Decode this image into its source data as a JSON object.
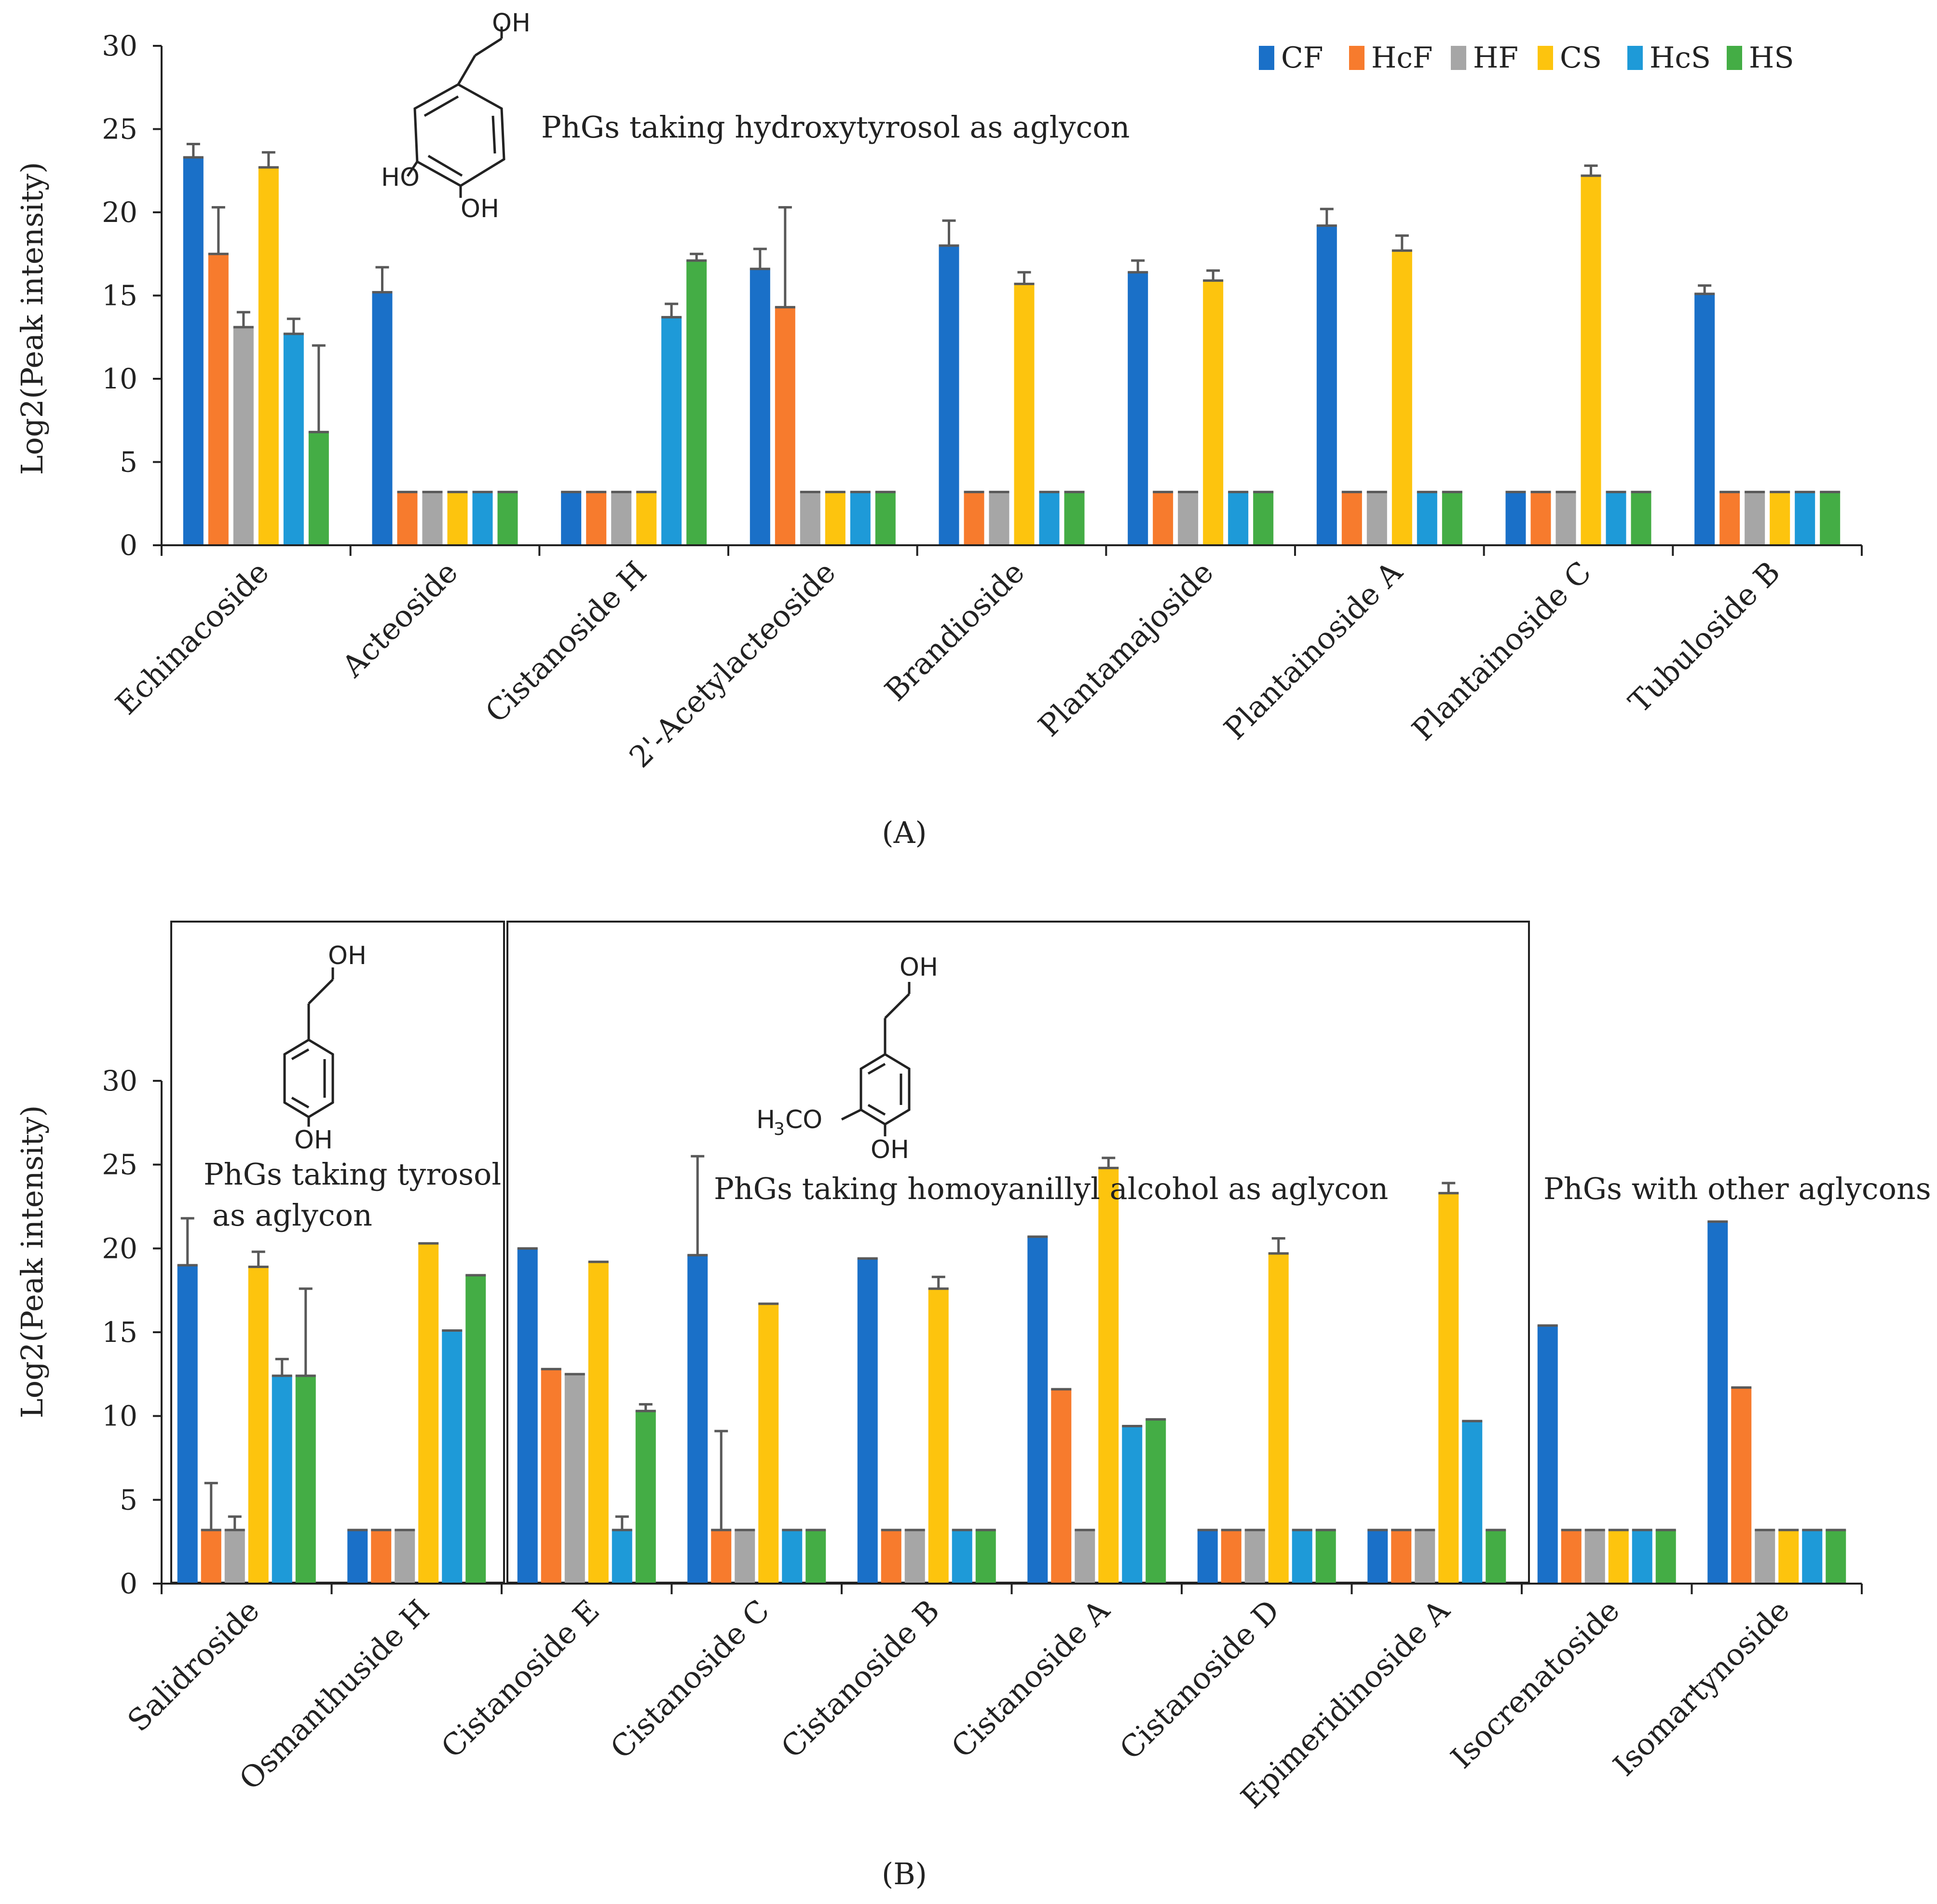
{
  "colors": {
    "CF": "#1a70c8",
    "HcF": "#f77b2d",
    "HF": "#a6a6a6",
    "CS": "#fdc40e",
    "HcS": "#1e9ad8",
    "HS": "#44ad45",
    "error_bar": "#595959"
  },
  "chart_data": [
    {
      "type": "bar",
      "panel": "(A)",
      "ylabel": "Log2(Peak intensity)",
      "ylim": [
        0,
        30
      ],
      "yticks": [
        0,
        5,
        10,
        15,
        20,
        25,
        30
      ],
      "legend": [
        "CF",
        "HcF",
        "HF",
        "CS",
        "HcS",
        "HS"
      ],
      "legend_position": "top-right",
      "categories": [
        "Echinacoside",
        "Acteoside",
        "Cistanoside H",
        "2'-Acetylacteoside",
        "Brandioside",
        "Plantamajoside",
        "Plantainoside A",
        "Plantainoside C",
        "Tubuloside B"
      ],
      "annotation": "PhGs taking hydroxytyrosol as aglycon",
      "structure_labels": [
        "OH",
        "HO",
        "OH"
      ],
      "series": [
        {
          "name": "CF",
          "values": [
            23.3,
            15.2,
            3.2,
            16.6,
            18.0,
            16.4,
            19.2,
            3.2,
            15.1
          ],
          "errors": [
            0.8,
            1.5,
            0,
            1.2,
            1.5,
            0.7,
            1.0,
            0,
            0.5
          ]
        },
        {
          "name": "HcF",
          "values": [
            17.5,
            3.2,
            3.2,
            14.3,
            3.2,
            3.2,
            3.2,
            3.2,
            3.2
          ],
          "errors": [
            2.8,
            0,
            0,
            6.0,
            0,
            0,
            0,
            0,
            0
          ]
        },
        {
          "name": "HF",
          "values": [
            13.1,
            3.2,
            3.2,
            3.2,
            3.2,
            3.2,
            3.2,
            3.2,
            3.2
          ],
          "errors": [
            0.9,
            0,
            0,
            0,
            0,
            0,
            0,
            0,
            0
          ]
        },
        {
          "name": "CS",
          "values": [
            22.7,
            3.2,
            3.2,
            3.2,
            15.7,
            15.9,
            17.7,
            22.2,
            3.2
          ],
          "errors": [
            0.9,
            0,
            0,
            0,
            0.7,
            0.6,
            0.9,
            0.6,
            0
          ]
        },
        {
          "name": "HcS",
          "values": [
            12.7,
            3.2,
            13.7,
            3.2,
            3.2,
            3.2,
            3.2,
            3.2,
            3.2
          ],
          "errors": [
            0.9,
            0,
            0.8,
            0,
            0,
            0,
            0,
            0,
            0
          ]
        },
        {
          "name": "HS",
          "values": [
            6.8,
            3.2,
            17.1,
            3.2,
            3.2,
            3.2,
            3.2,
            3.2,
            3.2
          ],
          "errors": [
            5.2,
            0,
            0.4,
            0,
            0,
            0,
            0,
            0,
            0
          ]
        }
      ]
    },
    {
      "type": "bar",
      "panel": "(B)",
      "ylabel": "Log2(Peak intensity)",
      "ylim": [
        0,
        30
      ],
      "yticks": [
        0,
        5,
        10,
        15,
        20,
        25,
        30
      ],
      "categories": [
        "Salidroside",
        "Osmanthuside H",
        "Cistanoside E",
        "Cistanoside C",
        "Cistanoside B",
        "Cistanoside A",
        "Cistanoside D",
        "Epimeridinoside A",
        "Isocrenatoside",
        "Isomartynoside"
      ],
      "groups": [
        {
          "annotation_lines": [
            "PhGs taking tyrosol",
            "as aglycon"
          ],
          "categories": [
            "Salidroside",
            "Osmanthuside H"
          ],
          "structure_labels": [
            "OH",
            "OH"
          ]
        },
        {
          "annotation_lines": [
            "PhGs taking homoyanillyl alcohol as aglycon"
          ],
          "categories": [
            "Cistanoside E",
            "Cistanoside C",
            "Cistanoside B",
            "Cistanoside A",
            "Cistanoside D",
            "Epimeridinoside A"
          ],
          "structure_labels": [
            "OH",
            "H",
            "3",
            "CO",
            "OH"
          ]
        },
        {
          "annotation_lines": [
            "PhGs with other aglycons"
          ],
          "categories": [
            "Isocrenatoside",
            "Isomartynoside"
          ]
        }
      ],
      "series": [
        {
          "name": "CF",
          "values": [
            19.0,
            3.2,
            20.0,
            19.6,
            19.4,
            20.7,
            3.2,
            3.2,
            15.4,
            21.6
          ],
          "errors": [
            2.8,
            0,
            0,
            5.9,
            0,
            0,
            0,
            0,
            0,
            0
          ]
        },
        {
          "name": "HcF",
          "values": [
            3.2,
            3.2,
            12.8,
            3.2,
            3.2,
            11.6,
            3.2,
            3.2,
            3.2,
            11.7
          ],
          "errors": [
            2.8,
            0,
            0,
            5.9,
            0,
            0,
            0,
            0,
            0,
            0
          ]
        },
        {
          "name": "HF",
          "values": [
            3.2,
            3.2,
            12.5,
            3.2,
            3.2,
            3.2,
            3.2,
            3.2,
            3.2,
            3.2
          ],
          "errors": [
            0.8,
            0,
            0,
            0,
            0,
            0,
            0,
            0,
            0,
            0
          ]
        },
        {
          "name": "CS",
          "values": [
            18.9,
            20.3,
            19.2,
            16.7,
            17.6,
            24.8,
            19.7,
            23.3,
            3.2,
            3.2
          ],
          "errors": [
            0.9,
            0,
            0,
            0,
            0.7,
            0.6,
            0.9,
            0.6,
            0,
            0
          ]
        },
        {
          "name": "HcS",
          "values": [
            12.4,
            15.1,
            3.2,
            3.2,
            3.2,
            9.4,
            3.2,
            9.7,
            3.2,
            3.2
          ],
          "errors": [
            1.0,
            0,
            0.8,
            0,
            0,
            0,
            0,
            0,
            0,
            0
          ]
        },
        {
          "name": "HS",
          "values": [
            12.4,
            18.4,
            10.3,
            3.2,
            3.2,
            9.8,
            3.2,
            3.2,
            3.2,
            3.2
          ],
          "errors": [
            5.2,
            0,
            0.4,
            0,
            0,
            0,
            0,
            0,
            0,
            0
          ]
        }
      ]
    }
  ]
}
